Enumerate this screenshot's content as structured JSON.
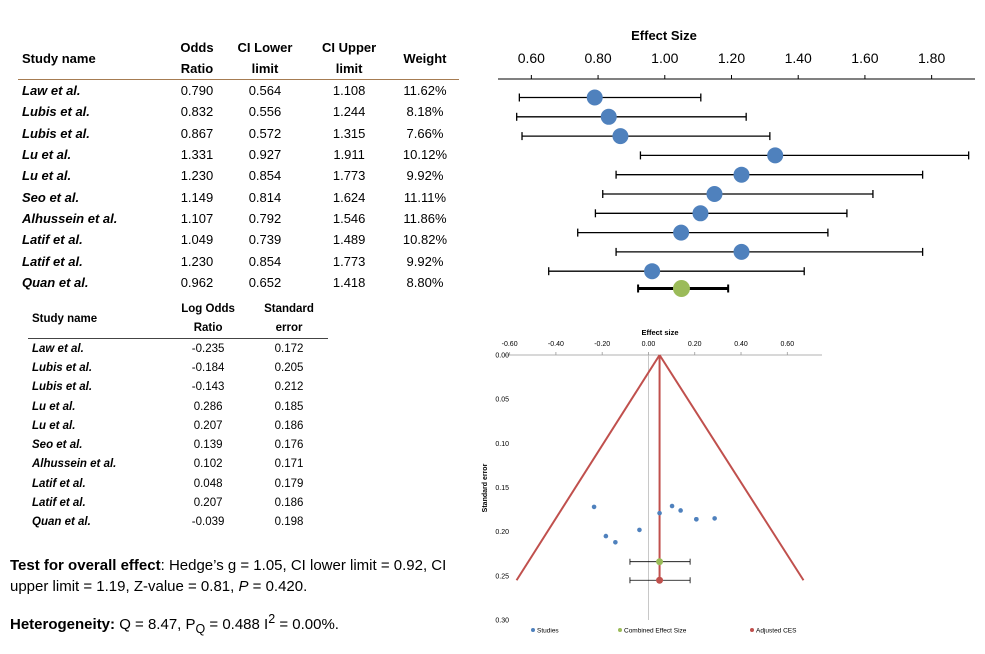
{
  "table1": {
    "headers": [
      {
        "l1": "Study name",
        "l2": ""
      },
      {
        "l1": "Odds",
        "l2": "Ratio"
      },
      {
        "l1": "CI Lower",
        "l2": "limit"
      },
      {
        "l1": "CI Upper",
        "l2": "limit"
      },
      {
        "l1": "Weight",
        "l2": ""
      }
    ],
    "rows": [
      {
        "name": "Law et al.",
        "or": "0.790",
        "lo": "0.564",
        "hi": "1.108",
        "w": "11.62%"
      },
      {
        "name": "Lubis et al.",
        "or": "0.832",
        "lo": "0.556",
        "hi": "1.244",
        "w": "8.18%"
      },
      {
        "name": "Lubis et al.",
        "or": "0.867",
        "lo": "0.572",
        "hi": "1.315",
        "w": "7.66%"
      },
      {
        "name": "Lu et al.",
        "or": "1.331",
        "lo": "0.927",
        "hi": "1.911",
        "w": "10.12%"
      },
      {
        "name": "Lu et al.",
        "or": "1.230",
        "lo": "0.854",
        "hi": "1.773",
        "w": "9.92%"
      },
      {
        "name": "Seo et al.",
        "or": "1.149",
        "lo": "0.814",
        "hi": "1.624",
        "w": "11.11%"
      },
      {
        "name": "Alhussein et al.",
        "or": "1.107",
        "lo": "0.792",
        "hi": "1.546",
        "w": "11.86%"
      },
      {
        "name": "Latif et al.",
        "or": "1.049",
        "lo": "0.739",
        "hi": "1.489",
        "w": "10.82%"
      },
      {
        "name": "Latif et al.",
        "or": "1.230",
        "lo": "0.854",
        "hi": "1.773",
        "w": "9.92%"
      },
      {
        "name": "Quan et al.",
        "or": "0.962",
        "lo": "0.652",
        "hi": "1.418",
        "w": "8.80%"
      }
    ]
  },
  "table2": {
    "headers": [
      {
        "l1": "Study name",
        "l2": ""
      },
      {
        "l1": "Log Odds",
        "l2": "Ratio"
      },
      {
        "l1": "Standard",
        "l2": "error"
      }
    ],
    "rows": [
      {
        "name": "Law et al.",
        "lor": "-0.235",
        "se": "0.172"
      },
      {
        "name": "Lubis et al.",
        "lor": "-0.184",
        "se": "0.205"
      },
      {
        "name": "Lubis et al.",
        "lor": "-0.143",
        "se": "0.212"
      },
      {
        "name": "Lu et al.",
        "lor": "0.286",
        "se": "0.185"
      },
      {
        "name": "Lu et al.",
        "lor": "0.207",
        "se": "0.186"
      },
      {
        "name": "Seo et al.",
        "lor": "0.139",
        "se": "0.176"
      },
      {
        "name": "Alhussein et al.",
        "lor": "0.102",
        "se": "0.171"
      },
      {
        "name": "Latif et al.",
        "lor": "0.048",
        "se": "0.179"
      },
      {
        "name": "Latif et al.",
        "lor": "0.207",
        "se": "0.186"
      },
      {
        "name": "Quan et al.",
        "lor": "-0.039",
        "se": "0.198"
      }
    ]
  },
  "overall": {
    "label": "Test for overall effect",
    "text": ": Hedge’s g = 1.05, CI lower limit = 0.92, CI upper limit = 1.19, Z-value = 0.81, ",
    "p_symbol": "P",
    "p_text": " = 0.420."
  },
  "heterogeneity": {
    "label": "Heterogeneity:",
    "q_text": " Q = 8.47, P",
    "q_sub": "Q",
    "i_text": " = 0.488 I",
    "i_sup": "2",
    "end_text": " = 0.00%."
  },
  "chart_data": [
    {
      "type": "forest",
      "title": "Effect Size",
      "xlim": [
        0.5,
        1.93
      ],
      "xticks": [
        "0.60",
        "0.80",
        "1.00",
        "1.20",
        "1.40",
        "1.60",
        "1.80"
      ],
      "studies": [
        {
          "est": 0.79,
          "lo": 0.564,
          "hi": 1.108
        },
        {
          "est": 0.832,
          "lo": 0.556,
          "hi": 1.244
        },
        {
          "est": 0.867,
          "lo": 0.572,
          "hi": 1.315
        },
        {
          "est": 1.331,
          "lo": 0.927,
          "hi": 1.911
        },
        {
          "est": 1.23,
          "lo": 0.854,
          "hi": 1.773
        },
        {
          "est": 1.149,
          "lo": 0.814,
          "hi": 1.624
        },
        {
          "est": 1.107,
          "lo": 0.792,
          "hi": 1.546
        },
        {
          "est": 1.049,
          "lo": 0.739,
          "hi": 1.489
        },
        {
          "est": 1.23,
          "lo": 0.854,
          "hi": 1.773
        },
        {
          "est": 0.962,
          "lo": 0.652,
          "hi": 1.418
        }
      ],
      "combined": {
        "est": 1.05,
        "lo": 0.92,
        "hi": 1.19
      },
      "colors": {
        "study": "#4f81bd",
        "combined": "#9bbb59",
        "line": "#000000"
      }
    },
    {
      "type": "funnel",
      "title": "Effect size",
      "ylabel": "Standard error",
      "xlim": [
        -0.62,
        0.75
      ],
      "ylim": [
        0,
        0.3
      ],
      "xticks": [
        "-0.60",
        "-0.40",
        "-0.20",
        "0.00",
        "0.20",
        "0.40",
        "0.60"
      ],
      "yticks": [
        "0.00",
        "0.05",
        "0.10",
        "0.15",
        "0.20",
        "0.25",
        "0.30"
      ],
      "studies": [
        {
          "x": -0.235,
          "y": 0.172
        },
        {
          "x": -0.184,
          "y": 0.205
        },
        {
          "x": -0.143,
          "y": 0.212
        },
        {
          "x": 0.286,
          "y": 0.185
        },
        {
          "x": 0.207,
          "y": 0.186
        },
        {
          "x": 0.139,
          "y": 0.176
        },
        {
          "x": 0.102,
          "y": 0.171
        },
        {
          "x": 0.048,
          "y": 0.179
        },
        {
          "x": 0.207,
          "y": 0.186
        },
        {
          "x": -0.039,
          "y": 0.198
        }
      ],
      "combined": {
        "x": 0.048,
        "y": 0.234,
        "lo": -0.08,
        "hi": 0.18
      },
      "adjusted": {
        "x": 0.048,
        "y": 0.255,
        "lo": -0.08,
        "hi": 0.18
      },
      "funnel_apex": {
        "x": 0.048,
        "y": 0.0
      },
      "funnel_base": {
        "left": -0.57,
        "right": 0.67,
        "y": 0.255
      },
      "legend": [
        "Studies",
        "Combined Effect Size",
        "Adjusted CES"
      ],
      "colors": {
        "studies": "#4f81bd",
        "combined": "#9bbb59",
        "adjusted": "#c0504d",
        "funnel": "#c0504d"
      }
    }
  ]
}
